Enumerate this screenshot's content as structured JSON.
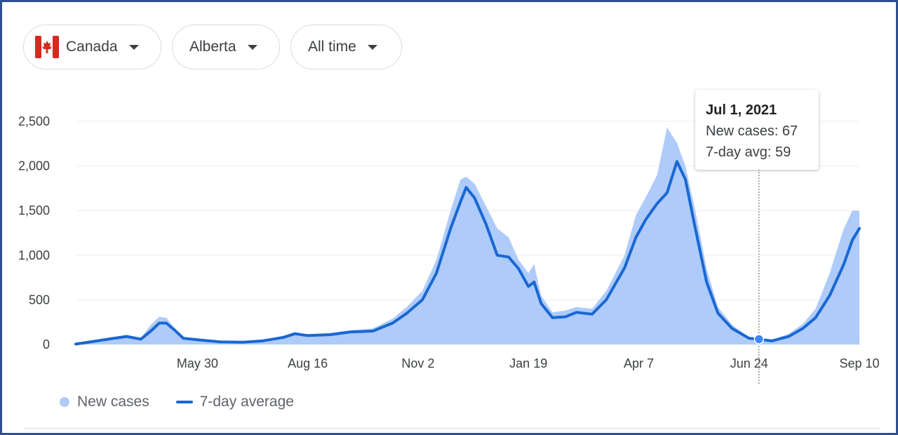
{
  "filters": {
    "country": {
      "label": "Canada",
      "flag_colors": {
        "red": "#d52b1e",
        "white": "#ffffff"
      }
    },
    "region": {
      "label": "Alberta"
    },
    "range": {
      "label": "All time"
    }
  },
  "tooltip": {
    "date": "Jul 1, 2021",
    "new_cases_text": "New cases: 67",
    "avg_text": "7-day avg: 59"
  },
  "legend": {
    "new_cases": "New cases",
    "avg": "7-day average"
  },
  "colors": {
    "bars": "#aecbfa",
    "line": "#1967d2",
    "grid": "#eeeeee",
    "frame": "#2f4f8f"
  },
  "chart_data": {
    "type": "area",
    "x_type": "date",
    "x_start": "2020-03-05",
    "x_end": "2021-09-10",
    "x_ticks": [
      {
        "label": "May 30",
        "date": "2020-05-30"
      },
      {
        "label": "Aug 16",
        "date": "2020-08-16"
      },
      {
        "label": "Nov 2",
        "date": "2020-11-02"
      },
      {
        "label": "Jan 19",
        "date": "2021-01-19"
      },
      {
        "label": "Apr 7",
        "date": "2021-04-07"
      },
      {
        "label": "Jun 24",
        "date": "2021-06-24"
      },
      {
        "label": "Sep 10",
        "date": "2021-09-10"
      }
    ],
    "y_ticks": [
      {
        "label": "0",
        "value": 0
      },
      {
        "label": "500",
        "value": 500
      },
      {
        "label": "1,000",
        "value": 1000
      },
      {
        "label": "1,500",
        "value": 1500
      },
      {
        "label": "2,000",
        "value": 2000
      },
      {
        "label": "2,500",
        "value": 2500
      }
    ],
    "ylim": [
      0,
      2500
    ],
    "grid": true,
    "legend_position": "bottom-left",
    "series": [
      {
        "name": "7-day average",
        "style": "line",
        "points": [
          [
            "2020-03-05",
            5
          ],
          [
            "2020-03-20",
            40
          ],
          [
            "2020-04-01",
            70
          ],
          [
            "2020-04-10",
            90
          ],
          [
            "2020-04-20",
            60
          ],
          [
            "2020-04-27",
            150
          ],
          [
            "2020-05-03",
            240
          ],
          [
            "2020-05-08",
            240
          ],
          [
            "2020-05-14",
            160
          ],
          [
            "2020-05-20",
            70
          ],
          [
            "2020-06-01",
            50
          ],
          [
            "2020-06-15",
            30
          ],
          [
            "2020-07-01",
            25
          ],
          [
            "2020-07-15",
            40
          ],
          [
            "2020-07-30",
            80
          ],
          [
            "2020-08-07",
            120
          ],
          [
            "2020-08-16",
            100
          ],
          [
            "2020-09-01",
            110
          ],
          [
            "2020-09-15",
            140
          ],
          [
            "2020-10-01",
            150
          ],
          [
            "2020-10-15",
            240
          ],
          [
            "2020-10-25",
            350
          ],
          [
            "2020-11-05",
            500
          ],
          [
            "2020-11-15",
            800
          ],
          [
            "2020-11-25",
            1300
          ],
          [
            "2020-12-02",
            1600
          ],
          [
            "2020-12-06",
            1760
          ],
          [
            "2020-12-12",
            1640
          ],
          [
            "2020-12-20",
            1350
          ],
          [
            "2020-12-28",
            1000
          ],
          [
            "2021-01-05",
            980
          ],
          [
            "2021-01-12",
            850
          ],
          [
            "2021-01-19",
            650
          ],
          [
            "2021-01-23",
            700
          ],
          [
            "2021-01-28",
            460
          ],
          [
            "2021-02-05",
            300
          ],
          [
            "2021-02-14",
            310
          ],
          [
            "2021-02-22",
            360
          ],
          [
            "2021-03-05",
            340
          ],
          [
            "2021-03-15",
            500
          ],
          [
            "2021-03-28",
            860
          ],
          [
            "2021-04-05",
            1200
          ],
          [
            "2021-04-12",
            1400
          ],
          [
            "2021-04-20",
            1580
          ],
          [
            "2021-04-27",
            1700
          ],
          [
            "2021-05-04",
            2050
          ],
          [
            "2021-05-10",
            1850
          ],
          [
            "2021-05-17",
            1300
          ],
          [
            "2021-05-25",
            700
          ],
          [
            "2021-06-02",
            350
          ],
          [
            "2021-06-12",
            180
          ],
          [
            "2021-06-24",
            70
          ],
          [
            "2021-07-01",
            59
          ],
          [
            "2021-07-10",
            40
          ],
          [
            "2021-07-22",
            90
          ],
          [
            "2021-08-01",
            180
          ],
          [
            "2021-08-10",
            300
          ],
          [
            "2021-08-20",
            550
          ],
          [
            "2021-08-30",
            900
          ],
          [
            "2021-09-05",
            1170
          ],
          [
            "2021-09-10",
            1300
          ]
        ]
      },
      {
        "name": "New cases",
        "style": "bars",
        "points": [
          [
            "2020-03-05",
            5
          ],
          [
            "2020-03-20",
            50
          ],
          [
            "2020-04-01",
            80
          ],
          [
            "2020-04-10",
            110
          ],
          [
            "2020-04-20",
            70
          ],
          [
            "2020-04-27",
            220
          ],
          [
            "2020-05-03",
            310
          ],
          [
            "2020-05-08",
            300
          ],
          [
            "2020-05-14",
            180
          ],
          [
            "2020-05-20",
            80
          ],
          [
            "2020-06-01",
            55
          ],
          [
            "2020-06-15",
            35
          ],
          [
            "2020-07-01",
            30
          ],
          [
            "2020-07-15",
            45
          ],
          [
            "2020-07-30",
            100
          ],
          [
            "2020-08-07",
            140
          ],
          [
            "2020-08-16",
            110
          ],
          [
            "2020-09-01",
            130
          ],
          [
            "2020-09-15",
            160
          ],
          [
            "2020-10-01",
            180
          ],
          [
            "2020-10-15",
            290
          ],
          [
            "2020-10-25",
            420
          ],
          [
            "2020-11-05",
            600
          ],
          [
            "2020-11-15",
            950
          ],
          [
            "2020-11-25",
            1500
          ],
          [
            "2020-12-02",
            1850
          ],
          [
            "2020-12-06",
            1880
          ],
          [
            "2020-12-12",
            1800
          ],
          [
            "2020-12-20",
            1550
          ],
          [
            "2020-12-28",
            1300
          ],
          [
            "2021-01-05",
            1200
          ],
          [
            "2021-01-12",
            950
          ],
          [
            "2021-01-19",
            800
          ],
          [
            "2021-01-23",
            900
          ],
          [
            "2021-01-28",
            550
          ],
          [
            "2021-02-05",
            360
          ],
          [
            "2021-02-14",
            380
          ],
          [
            "2021-02-22",
            420
          ],
          [
            "2021-03-05",
            400
          ],
          [
            "2021-03-15",
            600
          ],
          [
            "2021-03-28",
            1000
          ],
          [
            "2021-04-05",
            1450
          ],
          [
            "2021-04-12",
            1650
          ],
          [
            "2021-04-20",
            1900
          ],
          [
            "2021-04-27",
            2430
          ],
          [
            "2021-05-04",
            2260
          ],
          [
            "2021-05-10",
            2000
          ],
          [
            "2021-05-17",
            1500
          ],
          [
            "2021-05-25",
            850
          ],
          [
            "2021-06-02",
            420
          ],
          [
            "2021-06-12",
            220
          ],
          [
            "2021-06-24",
            80
          ],
          [
            "2021-07-01",
            67
          ],
          [
            "2021-07-10",
            50
          ],
          [
            "2021-07-22",
            120
          ],
          [
            "2021-08-01",
            230
          ],
          [
            "2021-08-10",
            400
          ],
          [
            "2021-08-20",
            800
          ],
          [
            "2021-08-30",
            1300
          ],
          [
            "2021-09-05",
            1500
          ],
          [
            "2021-09-10",
            1500
          ]
        ]
      }
    ],
    "highlight": {
      "date": "2021-07-01",
      "value": 59
    }
  }
}
